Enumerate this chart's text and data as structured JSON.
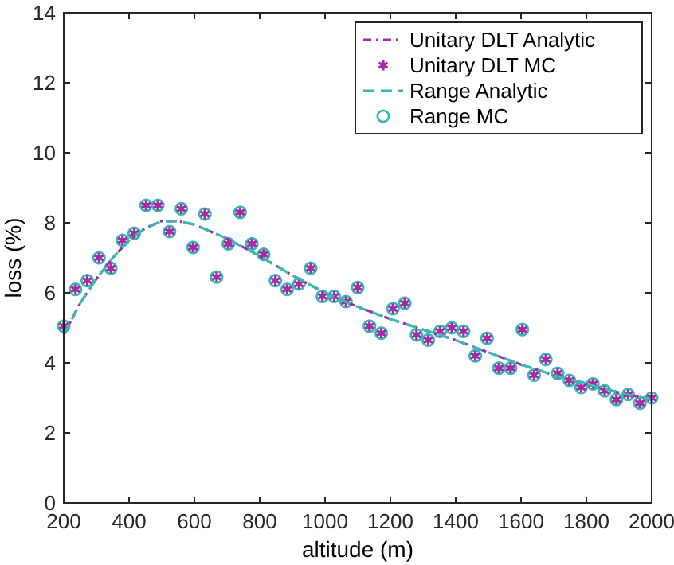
{
  "chart_data": {
    "type": "scatter",
    "xlabel": "altitude (m)",
    "ylabel": "loss (%)",
    "xlim": [
      200,
      2000
    ],
    "xticks": [
      200,
      400,
      600,
      800,
      1000,
      1200,
      1400,
      1600,
      1800,
      2000
    ],
    "ylim": [
      0,
      14
    ],
    "yticks": [
      0,
      2,
      4,
      6,
      8,
      10,
      12,
      14
    ],
    "grid": false,
    "legend": "top right",
    "series": [
      {
        "name": "Unitary DLT Analytic",
        "type": "line",
        "color": "#a12ca6",
        "line_style": "dotted",
        "marker": "none",
        "x": [
          200,
          250,
          300,
          350,
          400,
          450,
          500,
          550,
          600,
          700,
          800,
          900,
          1000,
          1100,
          1200,
          1300,
          1400,
          1500,
          1600,
          1700,
          1800,
          1900,
          2000
        ],
        "values": [
          4.8,
          5.7,
          6.4,
          7.0,
          7.5,
          7.85,
          8.05,
          8.05,
          7.95,
          7.55,
          7.05,
          6.5,
          6.0,
          5.6,
          5.25,
          4.95,
          4.65,
          4.3,
          3.95,
          3.65,
          3.4,
          3.15,
          2.95
        ]
      },
      {
        "name": "Unitary DLT MC",
        "color": "#a12ca6",
        "marker": "cross",
        "x": [
          200,
          236,
          272,
          308,
          344,
          380,
          416,
          452,
          488,
          524,
          560,
          596,
          632,
          668,
          704,
          740,
          776,
          812,
          848,
          884,
          920,
          956,
          992,
          1028,
          1064,
          1100,
          1136,
          1172,
          1208,
          1244,
          1280,
          1316,
          1352,
          1388,
          1424,
          1460,
          1496,
          1532,
          1568,
          1604,
          1640,
          1676,
          1712,
          1748,
          1784,
          1820,
          1856,
          1892,
          1928,
          1964,
          2000
        ],
        "values": [
          5.05,
          6.1,
          6.35,
          7.0,
          6.7,
          7.5,
          7.7,
          8.5,
          8.5,
          7.75,
          8.4,
          7.3,
          8.25,
          6.45,
          7.4,
          8.3,
          7.4,
          7.1,
          6.35,
          6.1,
          6.25,
          6.7,
          5.9,
          5.9,
          5.75,
          6.15,
          5.05,
          4.85,
          5.55,
          5.7,
          4.8,
          4.65,
          4.9,
          5.0,
          4.9,
          4.2,
          4.7,
          3.85,
          3.85,
          4.95,
          3.65,
          4.1,
          3.7,
          3.5,
          3.3,
          3.4,
          3.2,
          2.95,
          3.1,
          2.85,
          3.0
        ]
      },
      {
        "name": "Range Analytic",
        "type": "line",
        "color": "#3cb8b4",
        "line_style": "dashed",
        "marker": "none",
        "x": [
          200,
          250,
          300,
          350,
          400,
          450,
          500,
          550,
          600,
          700,
          800,
          900,
          1000,
          1100,
          1200,
          1300,
          1400,
          1500,
          1600,
          1700,
          1800,
          1900,
          2000
        ],
        "values": [
          4.8,
          5.7,
          6.4,
          7.0,
          7.5,
          7.85,
          8.05,
          8.05,
          7.95,
          7.55,
          7.05,
          6.5,
          6.0,
          5.6,
          5.25,
          4.95,
          4.65,
          4.3,
          3.95,
          3.65,
          3.4,
          3.15,
          2.95
        ]
      },
      {
        "name": "Range MC",
        "color": "#3cb8b4",
        "marker": "circle",
        "x": [
          200,
          236,
          272,
          308,
          344,
          380,
          416,
          452,
          488,
          524,
          560,
          596,
          632,
          668,
          704,
          740,
          776,
          812,
          848,
          884,
          920,
          956,
          992,
          1028,
          1064,
          1100,
          1136,
          1172,
          1208,
          1244,
          1280,
          1316,
          1352,
          1388,
          1424,
          1460,
          1496,
          1532,
          1568,
          1604,
          1640,
          1676,
          1712,
          1748,
          1784,
          1820,
          1856,
          1892,
          1928,
          1964,
          2000
        ],
        "values": [
          5.05,
          6.1,
          6.35,
          7.0,
          6.7,
          7.5,
          7.7,
          8.5,
          8.5,
          7.75,
          8.4,
          7.3,
          8.25,
          6.45,
          7.4,
          8.3,
          7.4,
          7.1,
          6.35,
          6.1,
          6.25,
          6.7,
          5.9,
          5.9,
          5.75,
          6.15,
          5.05,
          4.85,
          5.55,
          5.7,
          4.8,
          4.65,
          4.9,
          5.0,
          4.9,
          4.2,
          4.7,
          3.85,
          3.85,
          4.95,
          3.65,
          4.1,
          3.7,
          3.5,
          3.3,
          3.4,
          3.2,
          2.95,
          3.1,
          2.85,
          3.0
        ]
      }
    ]
  }
}
